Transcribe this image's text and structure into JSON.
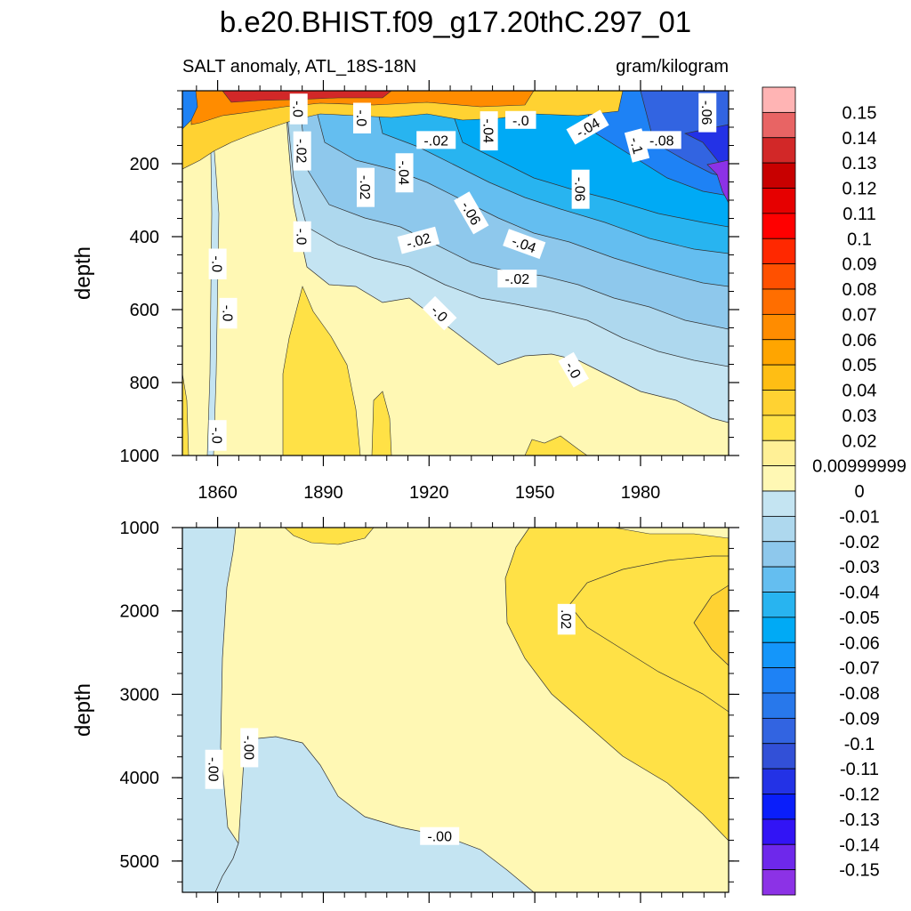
{
  "chart_data": {
    "type": "heatmap",
    "title": "b.e20.BHIST.f09_g17.20thC.297_01",
    "subtitle_left": "SALT anomaly, ATL_18S-18N",
    "subtitle_right": "gram/kilogram",
    "x_tick_labels": [
      "1860",
      "1890",
      "1920",
      "1950",
      "1980"
    ],
    "x_ticks": [
      1860,
      1890,
      1920,
      1950,
      1980
    ],
    "xlim": [
      1850,
      2005
    ],
    "panels": [
      {
        "name": "upper-ocean",
        "ylabel": "depth",
        "ylim": [
          0,
          1000
        ],
        "y_ticks": [
          200,
          400,
          600,
          800,
          1000
        ],
        "y_tick_labels": [
          "200",
          "400",
          "600",
          "800",
          "1000"
        ],
        "contour_labels": [
          {
            "x": 1883,
            "y": 50,
            "text": "-.0",
            "rot": 90
          },
          {
            "x": 1884,
            "y": 165,
            "text": "-.02",
            "rot": 90
          },
          {
            "x": 1902,
            "y": 265,
            "text": "-.02",
            "rot": 90
          },
          {
            "x": 1913,
            "y": 225,
            "text": "-.04",
            "rot": 90
          },
          {
            "x": 1922,
            "y": 135,
            "text": "-.02",
            "rot": 0
          },
          {
            "x": 1937,
            "y": 110,
            "text": "-.04",
            "rot": 90
          },
          {
            "x": 1946,
            "y": 80,
            "text": "-.0",
            "rot": 0
          },
          {
            "x": 1965,
            "y": 100,
            "text": "-.04",
            "rot": -30
          },
          {
            "x": 1979,
            "y": 150,
            "text": "-.1",
            "rot": 75
          },
          {
            "x": 1986,
            "y": 135,
            "text": "-.08",
            "rot": 0
          },
          {
            "x": 1901,
            "y": 75,
            "text": "-.0",
            "rot": 90
          },
          {
            "x": 1932,
            "y": 335,
            "text": "-.06",
            "rot": 60
          },
          {
            "x": 1963,
            "y": 270,
            "text": "-.06",
            "rot": 90
          },
          {
            "x": 1884,
            "y": 400,
            "text": "-.0",
            "rot": 90
          },
          {
            "x": 1917,
            "y": 410,
            "text": "-.02",
            "rot": -15
          },
          {
            "x": 1947,
            "y": 420,
            "text": "-.04",
            "rot": 20
          },
          {
            "x": 1945,
            "y": 515,
            "text": "-.02",
            "rot": 0
          },
          {
            "x": 1923,
            "y": 610,
            "text": "-.0",
            "rot": 45
          },
          {
            "x": 1961,
            "y": 765,
            "text": "-.0",
            "rot": 60
          },
          {
            "x": 1860,
            "y": 475,
            "text": "-.0",
            "rot": 90
          },
          {
            "x": 1863,
            "y": 610,
            "text": "-.0",
            "rot": 90
          },
          {
            "x": 1860,
            "y": 945,
            "text": "-.0",
            "rot": 90
          },
          {
            "x": 1999,
            "y": 60,
            "text": "-.06",
            "rot": 90
          }
        ]
      },
      {
        "name": "deep-ocean",
        "ylabel": "depth",
        "ylim": [
          1000,
          5375
        ],
        "y_ticks": [
          1000,
          2000,
          3000,
          4000,
          5000
        ],
        "y_tick_labels": [
          "1000",
          "2000",
          "3000",
          "4000",
          "5000"
        ],
        "contour_labels": [
          {
            "x": 1959,
            "y": 2100,
            "text": ".02",
            "rot": 90
          },
          {
            "x": 1859,
            "y": 3900,
            "text": "-.00",
            "rot": 90
          },
          {
            "x": 1869,
            "y": 3640,
            "text": "-.00",
            "rot": 90
          },
          {
            "x": 1923,
            "y": 4700,
            "text": "-.00",
            "rot": 0
          }
        ]
      }
    ],
    "colorbar": {
      "labels": [
        "0.15",
        "0.14",
        "0.13",
        "0.12",
        "0.11",
        "0.1",
        "0.09",
        "0.08",
        "0.07",
        "0.06",
        "0.05",
        "0.04",
        "0.03",
        "0.02",
        "0.00999999",
        "0",
        "-0.01",
        "-0.02",
        "-0.03",
        "-0.04",
        "-0.05",
        "-0.06",
        "-0.07",
        "-0.08",
        "-0.09",
        "-0.1",
        "-0.11",
        "-0.12",
        "-0.13",
        "-0.14",
        "-0.15"
      ],
      "colors": [
        "#ffb4b4",
        "#e86464",
        "#d22828",
        "#c80000",
        "#e60000",
        "#ff0000",
        "#ff2800",
        "#ff5000",
        "#ff6e00",
        "#ff8c00",
        "#ffa500",
        "#ffbe14",
        "#ffd232",
        "#ffe146",
        "#fff096",
        "#fff8b4",
        "#c4e4f2",
        "#aed8ee",
        "#8ec8ec",
        "#64bef0",
        "#28b4f0",
        "#00aaf5",
        "#1496fa",
        "#1e82f5",
        "#2878eb",
        "#3264e1",
        "#3250d7",
        "#2332e6",
        "#0a1efa",
        "#3214f5",
        "#6e28eb",
        "#8c32e6"
      ]
    }
  }
}
